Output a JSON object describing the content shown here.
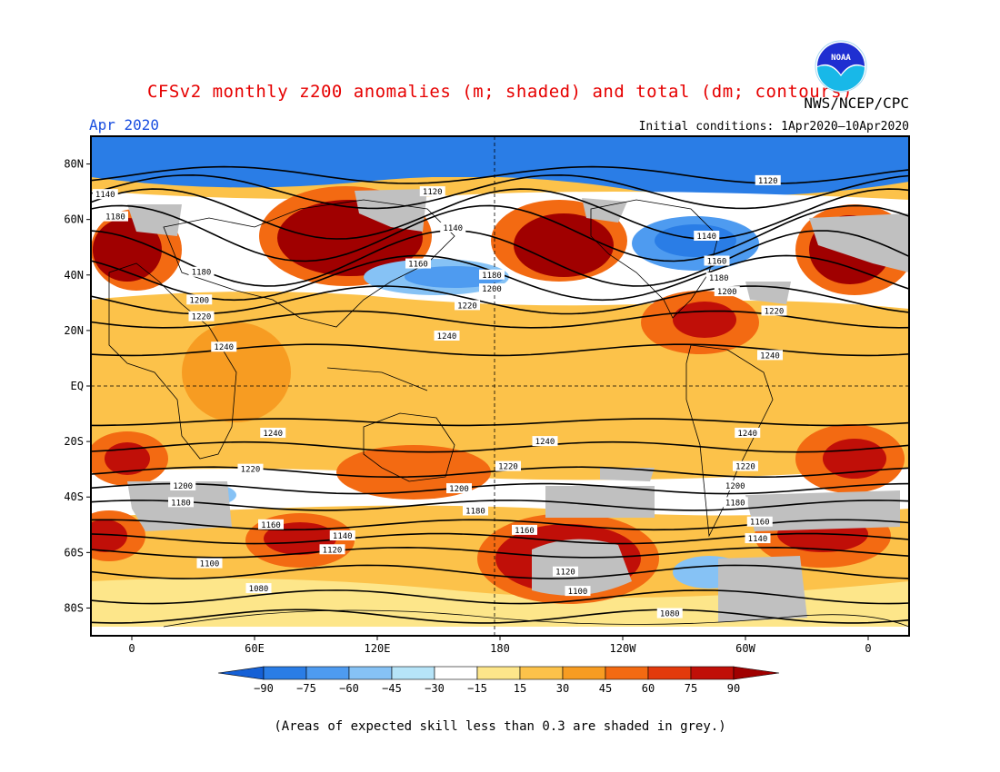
{
  "header": {
    "title": "CFSv2 monthly z200 anomalies (m; shaded) and total (dm; contours)",
    "agency": "NWS/NCEP/CPC",
    "month": "Apr 2020",
    "initial_conditions": "Initial conditions: 1Apr2020–10Apr2020",
    "logo_text": "NOAA"
  },
  "map": {
    "lat_labels": [
      {
        "lat": 80,
        "label": "80N"
      },
      {
        "lat": 60,
        "label": "60N"
      },
      {
        "lat": 40,
        "label": "40N"
      },
      {
        "lat": 20,
        "label": "20N"
      },
      {
        "lat": 0,
        "label": "EQ"
      },
      {
        "lat": -20,
        "label": "20S"
      },
      {
        "lat": -40,
        "label": "40S"
      },
      {
        "lat": -60,
        "label": "60S"
      },
      {
        "lat": -80,
        "label": "80S"
      }
    ],
    "lon_labels": [
      {
        "lon": 0,
        "label": "0"
      },
      {
        "lon": 60,
        "label": "60E"
      },
      {
        "lon": 120,
        "label": "120E"
      },
      {
        "lon": 180,
        "label": "180"
      },
      {
        "lon": 240,
        "label": "120W"
      },
      {
        "lon": 300,
        "label": "60W"
      },
      {
        "lon": 360,
        "label": "0"
      }
    ],
    "lon_range": [
      -20,
      380
    ],
    "lat_range": [
      -90,
      90
    ],
    "contour_labels": [
      {
        "lon": -13,
        "lat": 69,
        "label": "1140"
      },
      {
        "lon": -8,
        "lat": 61,
        "label": "1180"
      },
      {
        "lon": 147,
        "lat": 70,
        "label": "1120"
      },
      {
        "lon": 311,
        "lat": 74,
        "label": "1120"
      },
      {
        "lon": 157,
        "lat": 57,
        "label": "1140"
      },
      {
        "lon": 281,
        "lat": 54,
        "label": "1140"
      },
      {
        "lon": 140,
        "lat": 44,
        "label": "1160"
      },
      {
        "lon": 286,
        "lat": 45,
        "label": "1160"
      },
      {
        "lon": 34,
        "lat": 41,
        "label": "1180"
      },
      {
        "lon": 176,
        "lat": 40,
        "label": "1180"
      },
      {
        "lon": 287,
        "lat": 39,
        "label": "1180"
      },
      {
        "lon": 33,
        "lat": 31,
        "label": "1200"
      },
      {
        "lon": 176,
        "lat": 35,
        "label": "1200"
      },
      {
        "lon": 291,
        "lat": 34,
        "label": "1200"
      },
      {
        "lon": 34,
        "lat": 25,
        "label": "1220"
      },
      {
        "lon": 164,
        "lat": 29,
        "label": "1220"
      },
      {
        "lon": 314,
        "lat": 27,
        "label": "1220"
      },
      {
        "lon": 45,
        "lat": 14,
        "label": "1240"
      },
      {
        "lon": 154,
        "lat": 18,
        "label": "1240"
      },
      {
        "lon": 312,
        "lat": 11,
        "label": "1240"
      },
      {
        "lon": 69,
        "lat": -17,
        "label": "1240"
      },
      {
        "lon": 202,
        "lat": -20,
        "label": "1240"
      },
      {
        "lon": 301,
        "lat": -17,
        "label": "1240"
      },
      {
        "lon": 58,
        "lat": -30,
        "label": "1220"
      },
      {
        "lon": 184,
        "lat": -29,
        "label": "1220"
      },
      {
        "lon": 300,
        "lat": -29,
        "label": "1220"
      },
      {
        "lon": 25,
        "lat": -36,
        "label": "1200"
      },
      {
        "lon": 160,
        "lat": -37,
        "label": "1200"
      },
      {
        "lon": 295,
        "lat": -36,
        "label": "1200"
      },
      {
        "lon": 24,
        "lat": -42,
        "label": "1180"
      },
      {
        "lon": 168,
        "lat": -45,
        "label": "1180"
      },
      {
        "lon": 295,
        "lat": -42,
        "label": "1180"
      },
      {
        "lon": 68,
        "lat": -50,
        "label": "1160"
      },
      {
        "lon": 192,
        "lat": -52,
        "label": "1160"
      },
      {
        "lon": 307,
        "lat": -49,
        "label": "1160"
      },
      {
        "lon": 103,
        "lat": -54,
        "label": "1140"
      },
      {
        "lon": 306,
        "lat": -55,
        "label": "1140"
      },
      {
        "lon": 98,
        "lat": -59,
        "label": "1120"
      },
      {
        "lon": 212,
        "lat": -67,
        "label": "1120"
      },
      {
        "lon": 38,
        "lat": -64,
        "label": "1100"
      },
      {
        "lon": 218,
        "lat": -74,
        "label": "1100"
      },
      {
        "lon": 62,
        "lat": -73,
        "label": "1080"
      },
      {
        "lon": 263,
        "lat": -82,
        "label": "1080"
      }
    ]
  },
  "colorbar": {
    "levels": [
      "−90",
      "−75",
      "−60",
      "−45",
      "−30",
      "−15",
      "15",
      "30",
      "45",
      "60",
      "75",
      "90"
    ],
    "colors": [
      "#1560d6",
      "#2a7de6",
      "#4e9bf0",
      "#86c2f5",
      "#b6e4f8",
      "#ffffff",
      "#fde68a",
      "#fcc24a",
      "#f79c22",
      "#f36a12",
      "#e33a0c",
      "#c00f08",
      "#a00000"
    ]
  },
  "footnote": "(Areas of expected skill less than 0.3 are shaded in grey.)"
}
